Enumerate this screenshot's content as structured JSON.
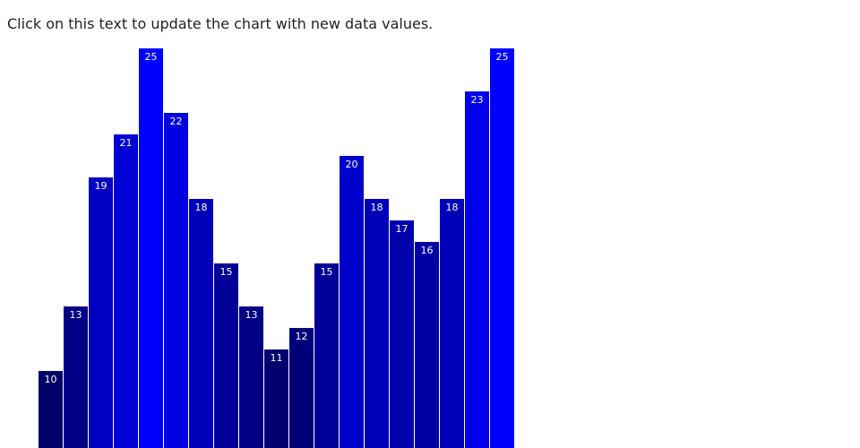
{
  "chart_data": {
    "type": "bar",
    "title": "Click on this text to update the chart with new data values.",
    "categories": [
      null,
      null,
      null,
      null,
      null,
      null,
      null,
      null,
      null,
      null,
      null,
      null,
      null,
      null,
      null,
      null,
      null,
      null,
      null
    ],
    "values": [
      10,
      13,
      19,
      21,
      25,
      22,
      18,
      15,
      13,
      11,
      12,
      15,
      20,
      18,
      17,
      16,
      18,
      23,
      25
    ],
    "color_range": [
      "#000066",
      "#0000ff"
    ],
    "ylim": [
      6.42,
      25
    ]
  }
}
